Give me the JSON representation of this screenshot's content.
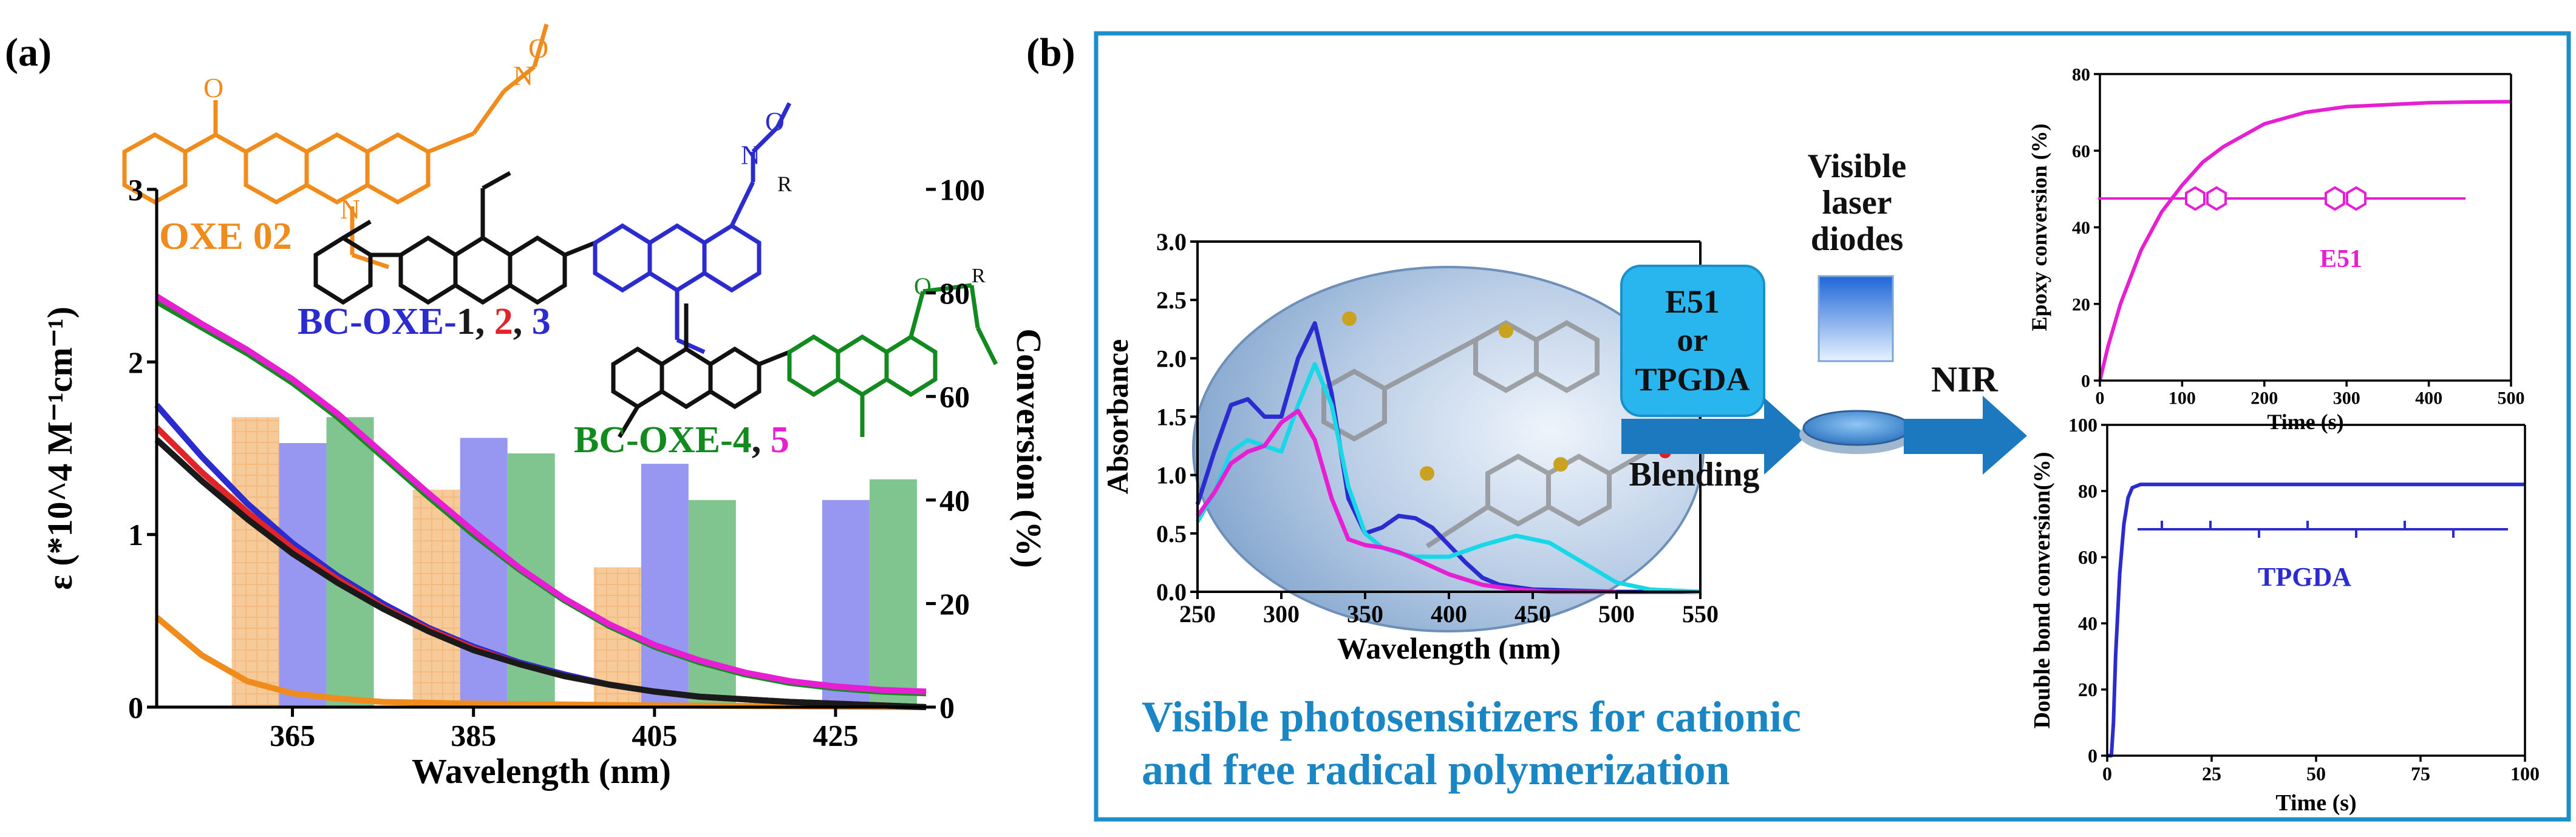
{
  "panel_a": {
    "label": "(a)",
    "compound_labels": {
      "oxe02": "OXE 02",
      "bc_prefix": "BC-OXE-",
      "bc1": "1",
      "bc2": "2",
      "bc3": "3",
      "bc4": "4",
      "bc5": "5",
      "sep": ", "
    },
    "struct_atoms": {
      "ketone_o": "O",
      "amine_n": "N",
      "oxime_n": "N",
      "ester_o": "O",
      "carbonyl_o": "O",
      "r_group": "R"
    }
  },
  "panel_b": {
    "label": "(b)",
    "e51_box": {
      "line1": "E51",
      "line2": "or",
      "line3": "TPGDA"
    },
    "blending": "Blending",
    "laser": {
      "line1": "Visible",
      "line2": "laser",
      "line3": "diodes"
    },
    "nir": "NIR",
    "caption": {
      "line1": "Visible photosensitizers for cationic",
      "line2": "and free radical  polymerization"
    }
  },
  "colors": {
    "orange": "#f08c1e",
    "blue": "#2b2bcf",
    "red": "#e0242a",
    "black": "#1a1a1a",
    "green": "#138a1f",
    "magenta": "#e61fd3",
    "cyan": "#18d8e8",
    "frame": "#1b8fc9",
    "arrow": "#1c79c0",
    "caption": "#1a86c4"
  },
  "chart_data": [
    {
      "id": "absorption",
      "type": "line",
      "xlabel": "Wavelength (nm)",
      "ylabel": "ε (*10^4 M⁻¹cm⁻¹)",
      "y2label": "Conversion (%)",
      "xlim": [
        350,
        435
      ],
      "ylim": [
        0,
        3
      ],
      "y2lim": [
        0,
        100
      ],
      "xticks": [
        365,
        385,
        405,
        425
      ],
      "yticks": [
        0,
        1,
        2,
        3
      ],
      "y2ticks": [
        0,
        20,
        40,
        60,
        80,
        100
      ],
      "series": [
        {
          "name": "OXE 02",
          "color": "#f08c1e",
          "x": [
            350,
            355,
            360,
            365,
            370,
            375,
            385,
            405,
            435
          ],
          "y": [
            0.52,
            0.3,
            0.15,
            0.08,
            0.05,
            0.03,
            0.02,
            0.01,
            0.0
          ]
        },
        {
          "name": "BC-OXE-1",
          "color": "#2b2bcf",
          "x": [
            350,
            355,
            360,
            365,
            370,
            375,
            380,
            385,
            390,
            395,
            400,
            405,
            410,
            420,
            435
          ],
          "y": [
            1.75,
            1.45,
            1.18,
            0.95,
            0.76,
            0.6,
            0.46,
            0.35,
            0.26,
            0.19,
            0.13,
            0.09,
            0.06,
            0.03,
            0.0
          ]
        },
        {
          "name": "BC-OXE-2",
          "color": "#e0242a",
          "x": [
            350,
            355,
            360,
            365,
            370,
            375,
            380,
            385,
            390,
            395,
            400,
            405,
            410,
            420,
            435
          ],
          "y": [
            1.62,
            1.36,
            1.13,
            0.92,
            0.74,
            0.58,
            0.45,
            0.34,
            0.25,
            0.18,
            0.13,
            0.09,
            0.06,
            0.03,
            0.0
          ]
        },
        {
          "name": "BC-OXE-3",
          "color": "#1a1a1a",
          "x": [
            350,
            355,
            360,
            365,
            370,
            375,
            380,
            385,
            390,
            395,
            400,
            405,
            410,
            420,
            435
          ],
          "y": [
            1.55,
            1.31,
            1.09,
            0.89,
            0.72,
            0.57,
            0.44,
            0.33,
            0.25,
            0.18,
            0.13,
            0.09,
            0.06,
            0.03,
            0.0
          ]
        },
        {
          "name": "BC-OXE-4",
          "color": "#138a1f",
          "x": [
            350,
            355,
            360,
            365,
            370,
            375,
            380,
            385,
            390,
            395,
            400,
            405,
            410,
            415,
            420,
            425,
            430,
            435
          ],
          "y": [
            2.35,
            2.2,
            2.05,
            1.88,
            1.68,
            1.45,
            1.22,
            1.0,
            0.8,
            0.62,
            0.47,
            0.35,
            0.26,
            0.19,
            0.14,
            0.11,
            0.09,
            0.08
          ]
        },
        {
          "name": "BC-OXE-5",
          "color": "#e61fd3",
          "x": [
            350,
            355,
            360,
            365,
            370,
            375,
            380,
            385,
            390,
            395,
            400,
            405,
            410,
            415,
            420,
            425,
            430,
            435
          ],
          "y": [
            2.38,
            2.22,
            2.07,
            1.9,
            1.7,
            1.47,
            1.24,
            1.02,
            0.81,
            0.63,
            0.48,
            0.36,
            0.27,
            0.2,
            0.15,
            0.12,
            0.1,
            0.09
          ]
        }
      ],
      "bars": {
        "axis": "y2",
        "categories": [
          365,
          385,
          405,
          425
        ],
        "series": [
          {
            "name": "OXE 02",
            "color": "#f5c08c",
            "values": [
              56,
              42,
              27,
              null
            ]
          },
          {
            "name": "BC-OXE",
            "color": "#8c8cf0",
            "values": [
              51,
              52,
              47,
              40
            ]
          },
          {
            "name": "BC-OXE-4",
            "color": "#72bf84",
            "values": [
              56,
              49,
              40,
              44
            ]
          }
        ]
      }
    },
    {
      "id": "absorbance",
      "type": "line",
      "xlabel": "Wavelength (nm)",
      "ylabel": "Absorbance",
      "xlim": [
        250,
        550
      ],
      "ylim": [
        0,
        3.0
      ],
      "xticks": [
        250,
        300,
        350,
        400,
        450,
        500,
        550
      ],
      "yticks": [
        0.0,
        0.5,
        1.0,
        1.5,
        2.0,
        2.5,
        3.0
      ],
      "series": [
        {
          "name": "blue",
          "color": "#2b2bcf",
          "x": [
            250,
            260,
            270,
            280,
            290,
            300,
            310,
            320,
            330,
            340,
            350,
            360,
            370,
            380,
            390,
            400,
            410,
            420,
            430,
            450,
            500,
            550
          ],
          "y": [
            0.75,
            1.2,
            1.6,
            1.65,
            1.5,
            1.5,
            2.0,
            2.3,
            1.7,
            0.8,
            0.5,
            0.55,
            0.65,
            0.63,
            0.55,
            0.4,
            0.25,
            0.12,
            0.06,
            0.02,
            0.0,
            0.0
          ]
        },
        {
          "name": "cyan",
          "color": "#18d8e8",
          "x": [
            250,
            260,
            270,
            280,
            290,
            300,
            310,
            320,
            330,
            340,
            350,
            360,
            370,
            380,
            400,
            420,
            440,
            460,
            480,
            500,
            520,
            550
          ],
          "y": [
            0.6,
            0.85,
            1.2,
            1.3,
            1.25,
            1.2,
            1.6,
            1.95,
            1.6,
            0.9,
            0.5,
            0.38,
            0.33,
            0.3,
            0.3,
            0.4,
            0.48,
            0.42,
            0.25,
            0.08,
            0.02,
            0.0
          ]
        },
        {
          "name": "magenta",
          "color": "#e61fd3",
          "x": [
            250,
            260,
            270,
            280,
            290,
            300,
            310,
            320,
            330,
            340,
            350,
            360,
            370,
            380,
            400,
            420,
            440,
            460,
            500
          ],
          "y": [
            0.65,
            0.85,
            1.1,
            1.2,
            1.25,
            1.45,
            1.55,
            1.3,
            0.8,
            0.45,
            0.4,
            0.38,
            0.34,
            0.28,
            0.15,
            0.06,
            0.02,
            0.0,
            0.0
          ]
        }
      ]
    },
    {
      "id": "epoxy",
      "type": "line",
      "xlabel": "Time (s)",
      "ylabel": "Epoxy conversion (%)",
      "xlim": [
        0,
        500
      ],
      "ylim": [
        0,
        80
      ],
      "xticks": [
        0,
        100,
        200,
        300,
        400,
        500
      ],
      "yticks": [
        0,
        20,
        40,
        60,
        80
      ],
      "legend_label": "E51",
      "series": [
        {
          "name": "E51",
          "color": "#e61fd3",
          "x": [
            0,
            10,
            25,
            50,
            75,
            100,
            125,
            150,
            200,
            250,
            300,
            350,
            400,
            450,
            500
          ],
          "y": [
            0,
            9,
            20,
            34,
            44,
            51,
            57,
            61,
            67,
            70,
            71.5,
            72,
            72.5,
            72.7,
            72.8
          ]
        }
      ]
    },
    {
      "id": "double_bond",
      "type": "line",
      "xlabel": "Time (s)",
      "ylabel": "Double bond conversion(%)",
      "xlim": [
        0,
        100
      ],
      "ylim": [
        0,
        100
      ],
      "xticks": [
        0,
        25,
        50,
        75,
        100
      ],
      "yticks": [
        0,
        20,
        40,
        60,
        80,
        100
      ],
      "legend_label": "TPGDA",
      "series": [
        {
          "name": "TPGDA",
          "color": "#2b2bcf",
          "x": [
            0,
            1,
            1.5,
            2,
            3,
            4,
            5,
            6,
            8,
            10,
            25,
            50,
            75,
            100
          ],
          "y": [
            0,
            0,
            10,
            30,
            55,
            70,
            78,
            81,
            82,
            82,
            82,
            82,
            82,
            82
          ]
        }
      ]
    }
  ]
}
